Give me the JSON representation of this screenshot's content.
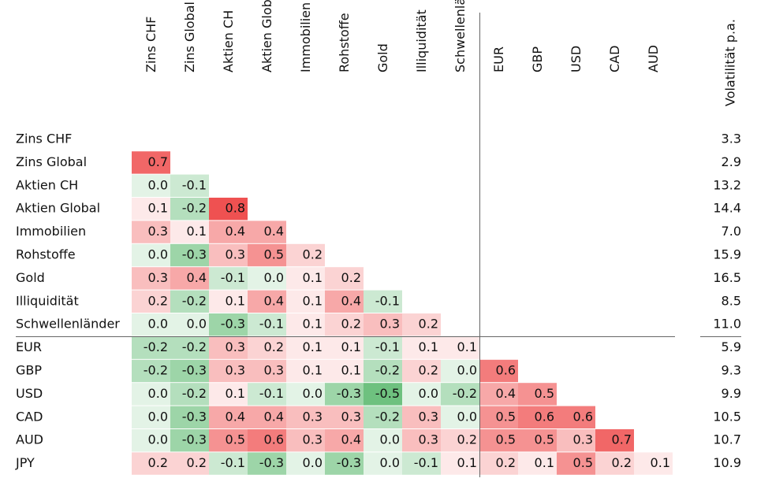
{
  "table": {
    "columns": [
      "Zins CHF",
      "Zins Global",
      "Aktien CH",
      "Aktien Global",
      "Immobilien",
      "Rohstoffe",
      "Gold",
      "Illiquidität",
      "Schwellenländer",
      "EUR",
      "GBP",
      "USD",
      "CAD",
      "AUD"
    ],
    "volatility_header": "Volatilität p.a.",
    "rows": [
      {
        "label": "Zins CHF",
        "cells": [],
        "volatility": "3.3"
      },
      {
        "label": "Zins Global",
        "cells": [
          "0.7"
        ],
        "volatility": "2.9"
      },
      {
        "label": "Aktien CH",
        "cells": [
          "0.0",
          "-0.1"
        ],
        "volatility": "13.2"
      },
      {
        "label": "Aktien Global",
        "cells": [
          "0.1",
          "-0.2",
          "0.8"
        ],
        "volatility": "14.4"
      },
      {
        "label": "Immobilien",
        "cells": [
          "0.3",
          "0.1",
          "0.4",
          "0.4"
        ],
        "volatility": "7.0"
      },
      {
        "label": "Rohstoffe",
        "cells": [
          "0.0",
          "-0.3",
          "0.3",
          "0.5",
          "0.2"
        ],
        "volatility": "15.9"
      },
      {
        "label": "Gold",
        "cells": [
          "0.3",
          "0.4",
          "-0.1",
          "0.0",
          "0.1",
          "0.2"
        ],
        "volatility": "16.5"
      },
      {
        "label": "Illiquidität",
        "cells": [
          "0.2",
          "-0.2",
          "0.1",
          "0.4",
          "0.1",
          "0.4",
          "-0.1"
        ],
        "volatility": "8.5"
      },
      {
        "label": "Schwellenländer",
        "cells": [
          "0.0",
          "0.0",
          "-0.3",
          "-0.1",
          "0.1",
          "0.2",
          "0.3",
          "0.2"
        ],
        "volatility": "11.0"
      },
      {
        "label": "EUR",
        "cells": [
          "-0.2",
          "-0.2",
          "0.3",
          "0.2",
          "0.1",
          "0.1",
          "-0.1",
          "0.1",
          "0.1"
        ],
        "volatility": "5.9"
      },
      {
        "label": "GBP",
        "cells": [
          "-0.2",
          "-0.3",
          "0.3",
          "0.3",
          "0.1",
          "0.1",
          "-0.2",
          "0.2",
          "0.0",
          "0.6"
        ],
        "volatility": "9.3"
      },
      {
        "label": "USD",
        "cells": [
          "0.0",
          "-0.2",
          "0.1",
          "-0.1",
          "0.0",
          "-0.3",
          "-0.5",
          "0.0",
          "-0.2",
          "0.4",
          "0.5"
        ],
        "volatility": "9.9"
      },
      {
        "label": "CAD",
        "cells": [
          "0.0",
          "-0.3",
          "0.4",
          "0.4",
          "0.3",
          "0.3",
          "-0.2",
          "0.3",
          "0.0",
          "0.5",
          "0.6",
          "0.6"
        ],
        "volatility": "10.5"
      },
      {
        "label": "AUD",
        "cells": [
          "0.0",
          "-0.3",
          "0.5",
          "0.6",
          "0.3",
          "0.4",
          "0.0",
          "0.3",
          "0.2",
          "0.5",
          "0.5",
          "0.3",
          "0.7"
        ],
        "volatility": "10.7"
      },
      {
        "label": "JPY",
        "cells": [
          "0.2",
          "0.2",
          "-0.1",
          "-0.3",
          "0.0",
          "-0.3",
          "0.0",
          "-0.1",
          "0.1",
          "0.2",
          "0.1",
          "0.5",
          "0.2",
          "0.1"
        ],
        "volatility": "10.9"
      }
    ]
  }
}
